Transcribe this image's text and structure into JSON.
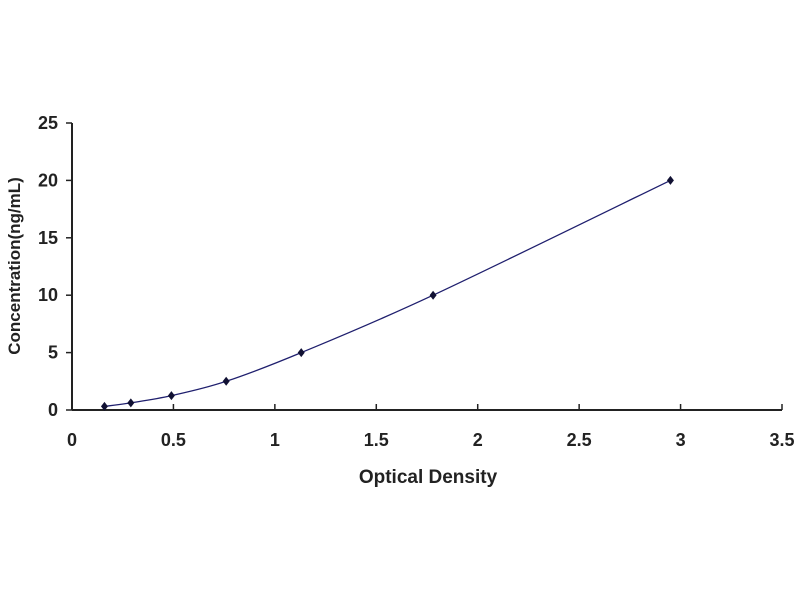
{
  "chart_data": {
    "type": "line",
    "title": "",
    "xlabel": "Optical Density",
    "ylabel": "Concentration(ng/mL)",
    "xlim": [
      0,
      3.5
    ],
    "ylim": [
      0,
      25
    ],
    "x_ticks": [
      "0",
      "0.5",
      "1",
      "1.5",
      "2",
      "2.5",
      "3",
      "3.5"
    ],
    "y_ticks": [
      "0",
      "5",
      "10",
      "15",
      "20",
      "25"
    ],
    "grid": false,
    "legend": "none",
    "series": [
      {
        "x": [
          0.16,
          0.29,
          0.49,
          0.76,
          1.13,
          1.78,
          2.95
        ],
        "y": [
          0.312,
          0.625,
          1.25,
          2.5,
          5,
          10,
          20
        ],
        "color": "#1f1f6e",
        "marker": "diamond"
      }
    ]
  }
}
